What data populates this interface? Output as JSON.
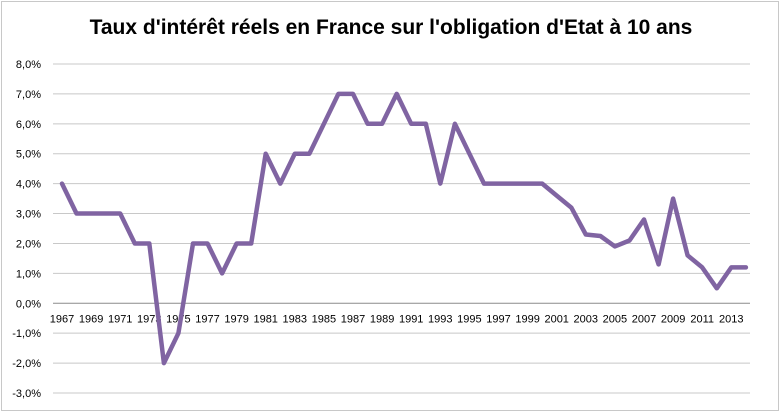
{
  "chart_data": {
    "type": "line",
    "title": "Taux d'intérêt réels en France sur l'obligation d'Etat à 10 ans",
    "xlabel": "",
    "ylabel": "",
    "ylim": [
      -3,
      8
    ],
    "yticks": [
      -3,
      -2,
      -1,
      0,
      1,
      2,
      3,
      4,
      5,
      6,
      7,
      8
    ],
    "ytick_labels": [
      "-3,0%",
      "-2,0%",
      "-1,0%",
      "0,0%",
      "1,0%",
      "2,0%",
      "3,0%",
      "4,0%",
      "5,0%",
      "6,0%",
      "7,0%",
      "8,0%"
    ],
    "xtick_labels": [
      "1967",
      "1969",
      "1971",
      "1973",
      "1975",
      "1977",
      "1979",
      "1981",
      "1983",
      "1985",
      "1987",
      "1989",
      "1991",
      "1993",
      "1995",
      "1997",
      "1999",
      "2001",
      "2003",
      "2005",
      "2007",
      "2009",
      "2011",
      "2013"
    ],
    "grid": "horizontal",
    "line_color": "#8064a2",
    "series": [
      {
        "x": [
          1967,
          1968,
          1969,
          1970,
          1971,
          1972,
          1973,
          1974,
          1975,
          1976,
          1977,
          1978,
          1979,
          1980,
          1981,
          1982,
          1983,
          1984,
          1985,
          1986,
          1987,
          1988,
          1989,
          1990,
          1991,
          1992,
          1993,
          1994,
          1995,
          1996,
          1997,
          1998,
          1999,
          2000,
          2001,
          2002,
          2003,
          2004,
          2005,
          2006,
          2007,
          2008,
          2009,
          2010,
          2011,
          2012,
          2013,
          2014
        ],
        "values": [
          4.0,
          3.0,
          3.0,
          3.0,
          3.0,
          2.0,
          2.0,
          -2.0,
          -1.0,
          2.0,
          2.0,
          1.0,
          2.0,
          2.0,
          5.0,
          4.0,
          5.0,
          5.0,
          6.0,
          7.0,
          7.0,
          6.0,
          6.0,
          7.0,
          6.0,
          6.0,
          4.0,
          6.0,
          5.0,
          4.0,
          4.0,
          4.0,
          4.0,
          4.0,
          3.6,
          3.2,
          2.3,
          2.25,
          1.9,
          2.1,
          2.8,
          1.3,
          3.5,
          1.6,
          1.2,
          0.5,
          1.2,
          1.2
        ]
      }
    ]
  }
}
